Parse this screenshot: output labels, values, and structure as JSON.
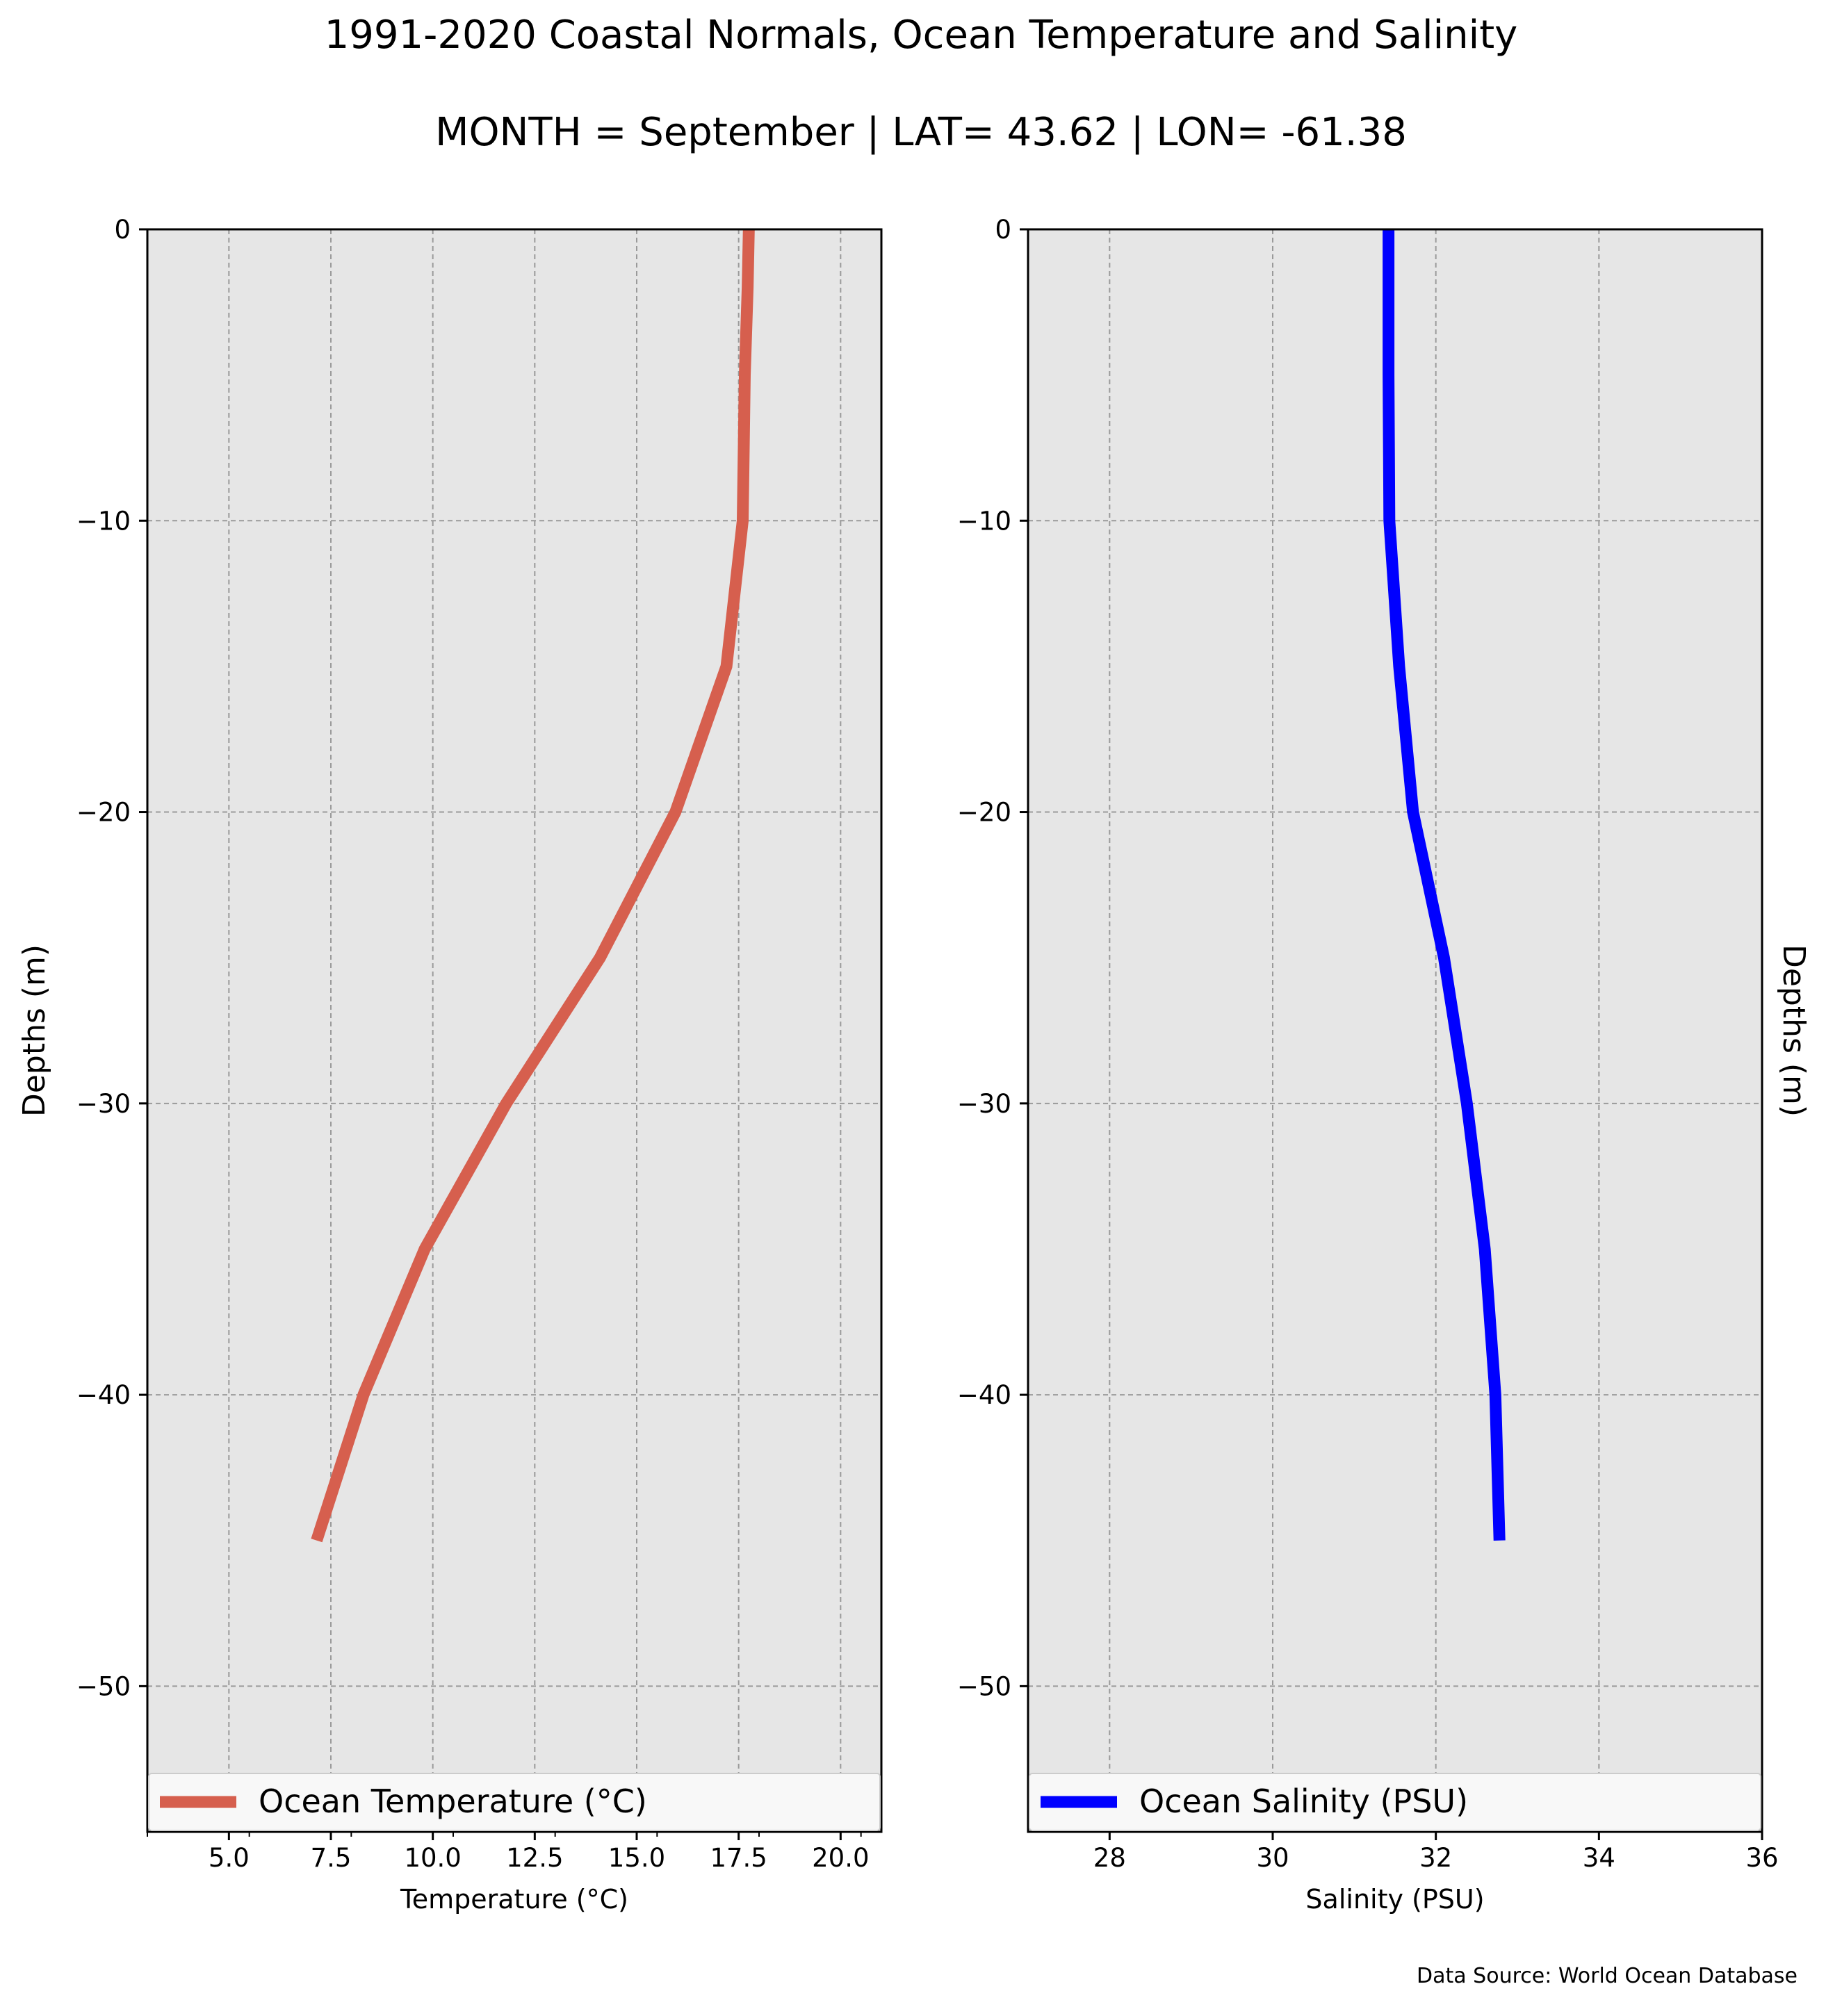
{
  "figure": {
    "title": "1991-2020 Coastal Normals, Ocean Temperature and Salinity",
    "subtitle": "MONTH = September | LAT= 43.62 | LON= -61.38",
    "source": "Data Source: World Ocean Database"
  },
  "chart_data": [
    {
      "type": "line",
      "xlabel": "Temperature (°C)",
      "ylabel": "Depths (m)",
      "xlim": [
        3.0,
        21.0
      ],
      "ylim": [
        -55,
        0
      ],
      "xticks": [
        5.0,
        7.5,
        10.0,
        12.5,
        15.0,
        17.5,
        20.0
      ],
      "xtick_labels": [
        "5.0",
        "7.5",
        "10.0",
        "12.5",
        "15.0",
        "17.5",
        "20.0"
      ],
      "yticks": [
        0,
        -10,
        -20,
        -30,
        -40,
        -50
      ],
      "ytick_labels": [
        "0",
        "−10",
        "−20",
        "−30",
        "−40",
        "−50"
      ],
      "grid": true,
      "legend_position": "bottom",
      "series": [
        {
          "name": "Ocean Temperature (°C)",
          "color": "#d65f4e",
          "x": [
            17.75,
            17.72,
            17.65,
            17.6,
            17.2,
            15.95,
            14.1,
            11.8,
            9.8,
            8.3,
            7.15
          ],
          "y": [
            0,
            -2,
            -5,
            -10,
            -15,
            -20,
            -25,
            -30,
            -35,
            -40,
            -45
          ]
        }
      ]
    },
    {
      "type": "line",
      "xlabel": "Salinity (PSU)",
      "ylabel": "Depths (m)",
      "xlim": [
        27,
        36
      ],
      "ylim": [
        -55,
        0
      ],
      "xticks": [
        28,
        30,
        32,
        34,
        36
      ],
      "xtick_labels": [
        "28",
        "30",
        "32",
        "34",
        "36"
      ],
      "yticks": [
        0,
        -10,
        -20,
        -30,
        -40,
        -50
      ],
      "ytick_labels": [
        "0",
        "−10",
        "−20",
        "−30",
        "−40",
        "−50"
      ],
      "grid": true,
      "legend_position": "bottom",
      "series": [
        {
          "name": "Ocean Salinity (PSU)",
          "color": "#0000ff",
          "x": [
            31.42,
            31.42,
            31.42,
            31.43,
            31.55,
            31.72,
            32.1,
            32.38,
            32.6,
            32.73,
            32.78
          ],
          "y": [
            0,
            -2,
            -5,
            -10,
            -15,
            -20,
            -25,
            -30,
            -35,
            -40,
            -45
          ]
        }
      ]
    }
  ]
}
